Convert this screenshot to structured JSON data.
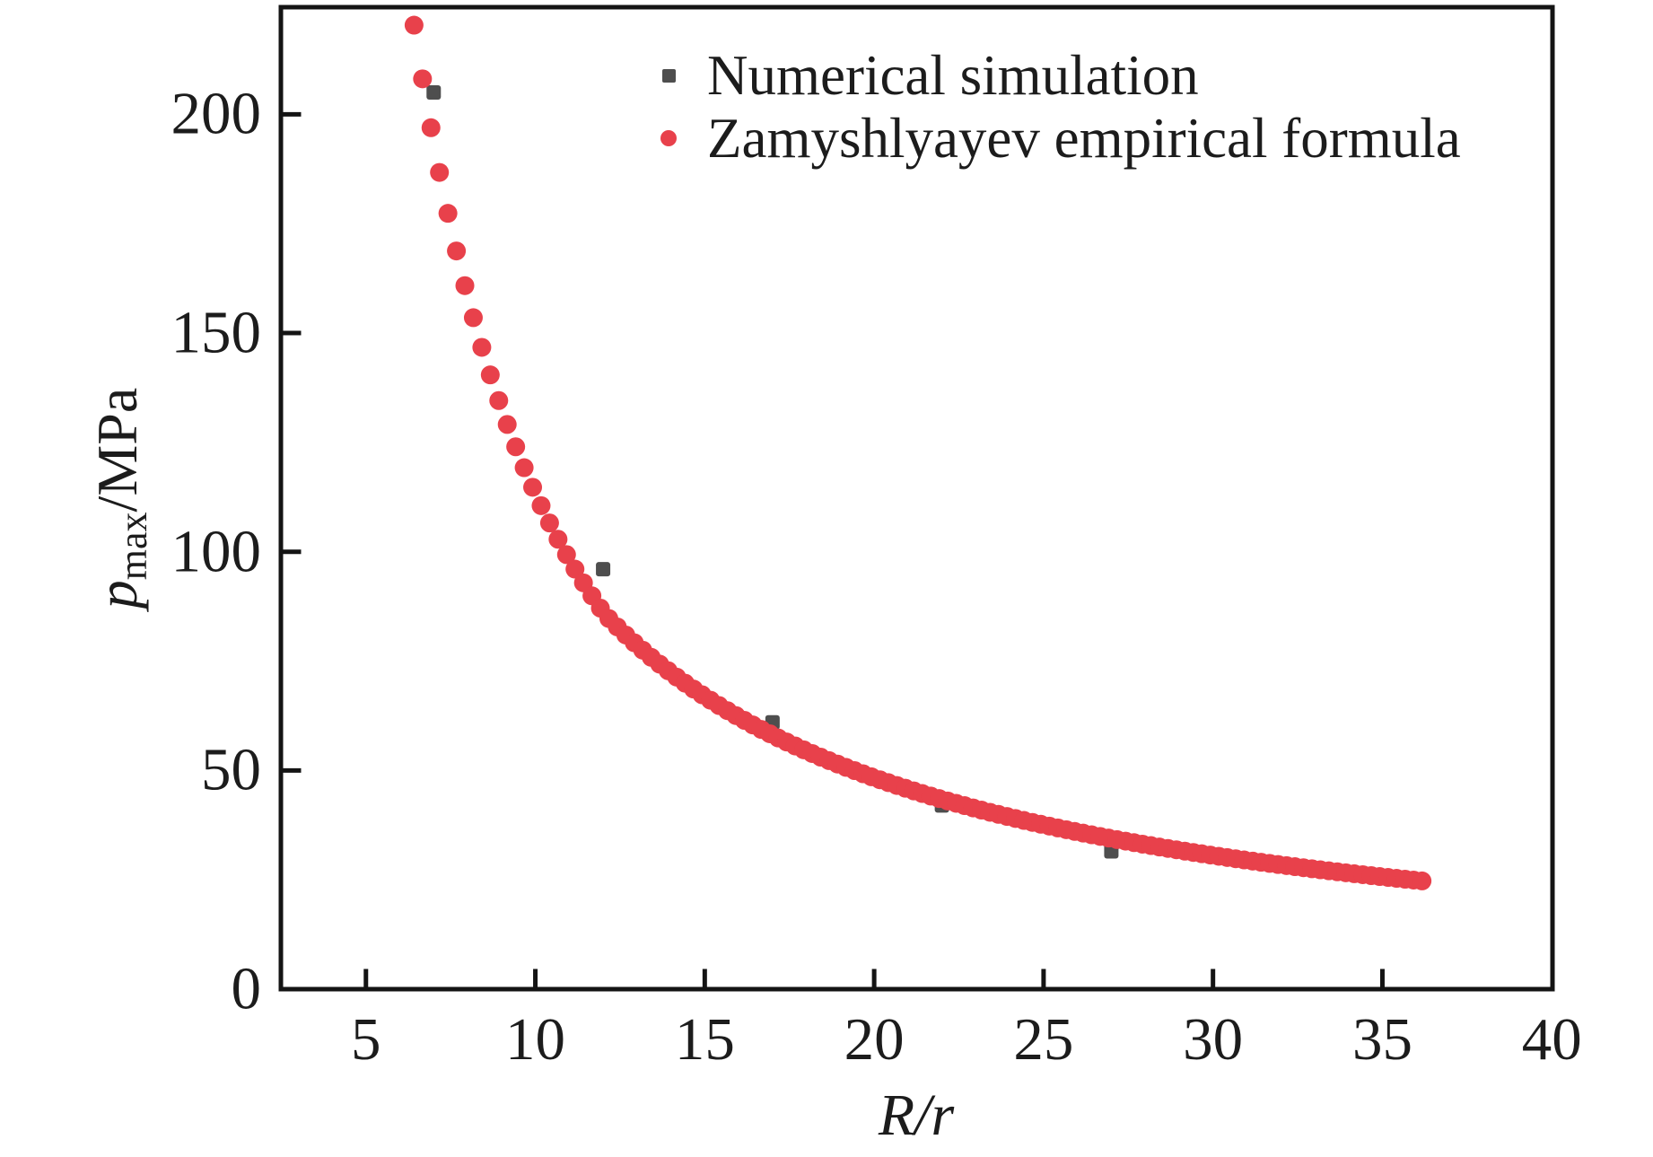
{
  "figure": {
    "background": "#ffffff",
    "frame_color": "#141414",
    "text_color": "#1c1c1c"
  },
  "axes": {
    "xlabel": "R/r",
    "ylabel_symbol": "p",
    "ylabel_subscript": "max",
    "ylabel_unit": "/MPa"
  },
  "chart_data": {
    "type": "scatter",
    "title": "",
    "xlabel": "R/r",
    "ylabel": "p_max/MPa",
    "xlim": [
      2.49,
      40.02
    ],
    "ylim": [
      0,
      224.5
    ],
    "x_tick_values": [
      5,
      10,
      15,
      20,
      25,
      30,
      35,
      40
    ],
    "y_tick_values": [
      0,
      50,
      100,
      150,
      200
    ],
    "grid": false,
    "legend_position": "upper-center-inside",
    "series": [
      {
        "name": "Numerical simulation",
        "marker": "square",
        "color": "#4e4e4e",
        "marker_size": 16,
        "points": [
          [
            7,
            205
          ],
          [
            12,
            96
          ],
          [
            17,
            61
          ],
          [
            22,
            42
          ],
          [
            27,
            31.5
          ]
        ]
      },
      {
        "name": "Zamyshlyayev empirical formula",
        "marker": "circle",
        "color": "#e8414b",
        "marker_size": 21,
        "formula": "p_max = 3585*(R/r)^-1.5 for R/r <= 12 ; p_max = 1427*(R/r)^-1.13 for R/r > 12",
        "sampling": {
          "start": 6.42,
          "step": 0.25,
          "count": 120
        },
        "branches": [
          {
            "upto": 12,
            "A": 3585,
            "b": 1.5
          },
          {
            "upto": 40.02,
            "A": 1427,
            "b": 1.13
          }
        ]
      }
    ]
  }
}
